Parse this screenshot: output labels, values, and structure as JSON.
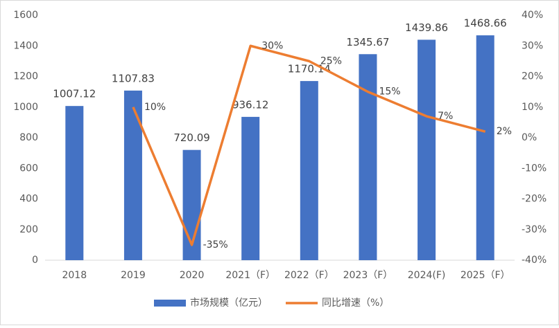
{
  "chart_data": {
    "type": "bar_line",
    "categories": [
      "2018",
      "2019",
      "2020",
      "2021（F）",
      "2022（F）",
      "2023（F）",
      "2024(F)",
      "2025（F）"
    ],
    "series": [
      {
        "name": "市场规模（亿元）",
        "color": "#4472c4",
        "type": "bar",
        "values": [
          1007.12,
          1107.83,
          720.09,
          936.12,
          1170.14,
          1345.67,
          1439.86,
          1468.66
        ]
      },
      {
        "name": "同比增速（%）",
        "color": "#ed7d31",
        "type": "line",
        "axis": "y2",
        "values": [
          null,
          10,
          -35,
          30,
          25,
          15,
          7,
          2
        ],
        "value_labels": [
          null,
          "10%",
          "-35%",
          "30%",
          "25%",
          "15%",
          "7%",
          "2%"
        ]
      }
    ],
    "ylim": [
      0,
      1600
    ],
    "yticks": [
      0,
      200,
      400,
      600,
      800,
      1000,
      1200,
      1400,
      1600
    ],
    "y2lim": [
      -40,
      40
    ],
    "y2ticks": [
      {
        "value": -40,
        "label": "-40%"
      },
      {
        "value": -30,
        "label": "-30%"
      },
      {
        "value": -20,
        "label": "-20%"
      },
      {
        "value": -10,
        "label": "-10%"
      },
      {
        "value": 0,
        "label": "0%"
      },
      {
        "value": 10,
        "label": "10%"
      },
      {
        "value": 20,
        "label": "20%"
      },
      {
        "value": 30,
        "label": "30%"
      },
      {
        "value": 40,
        "label": "40%"
      }
    ],
    "grid": false,
    "legend": "bottom"
  }
}
